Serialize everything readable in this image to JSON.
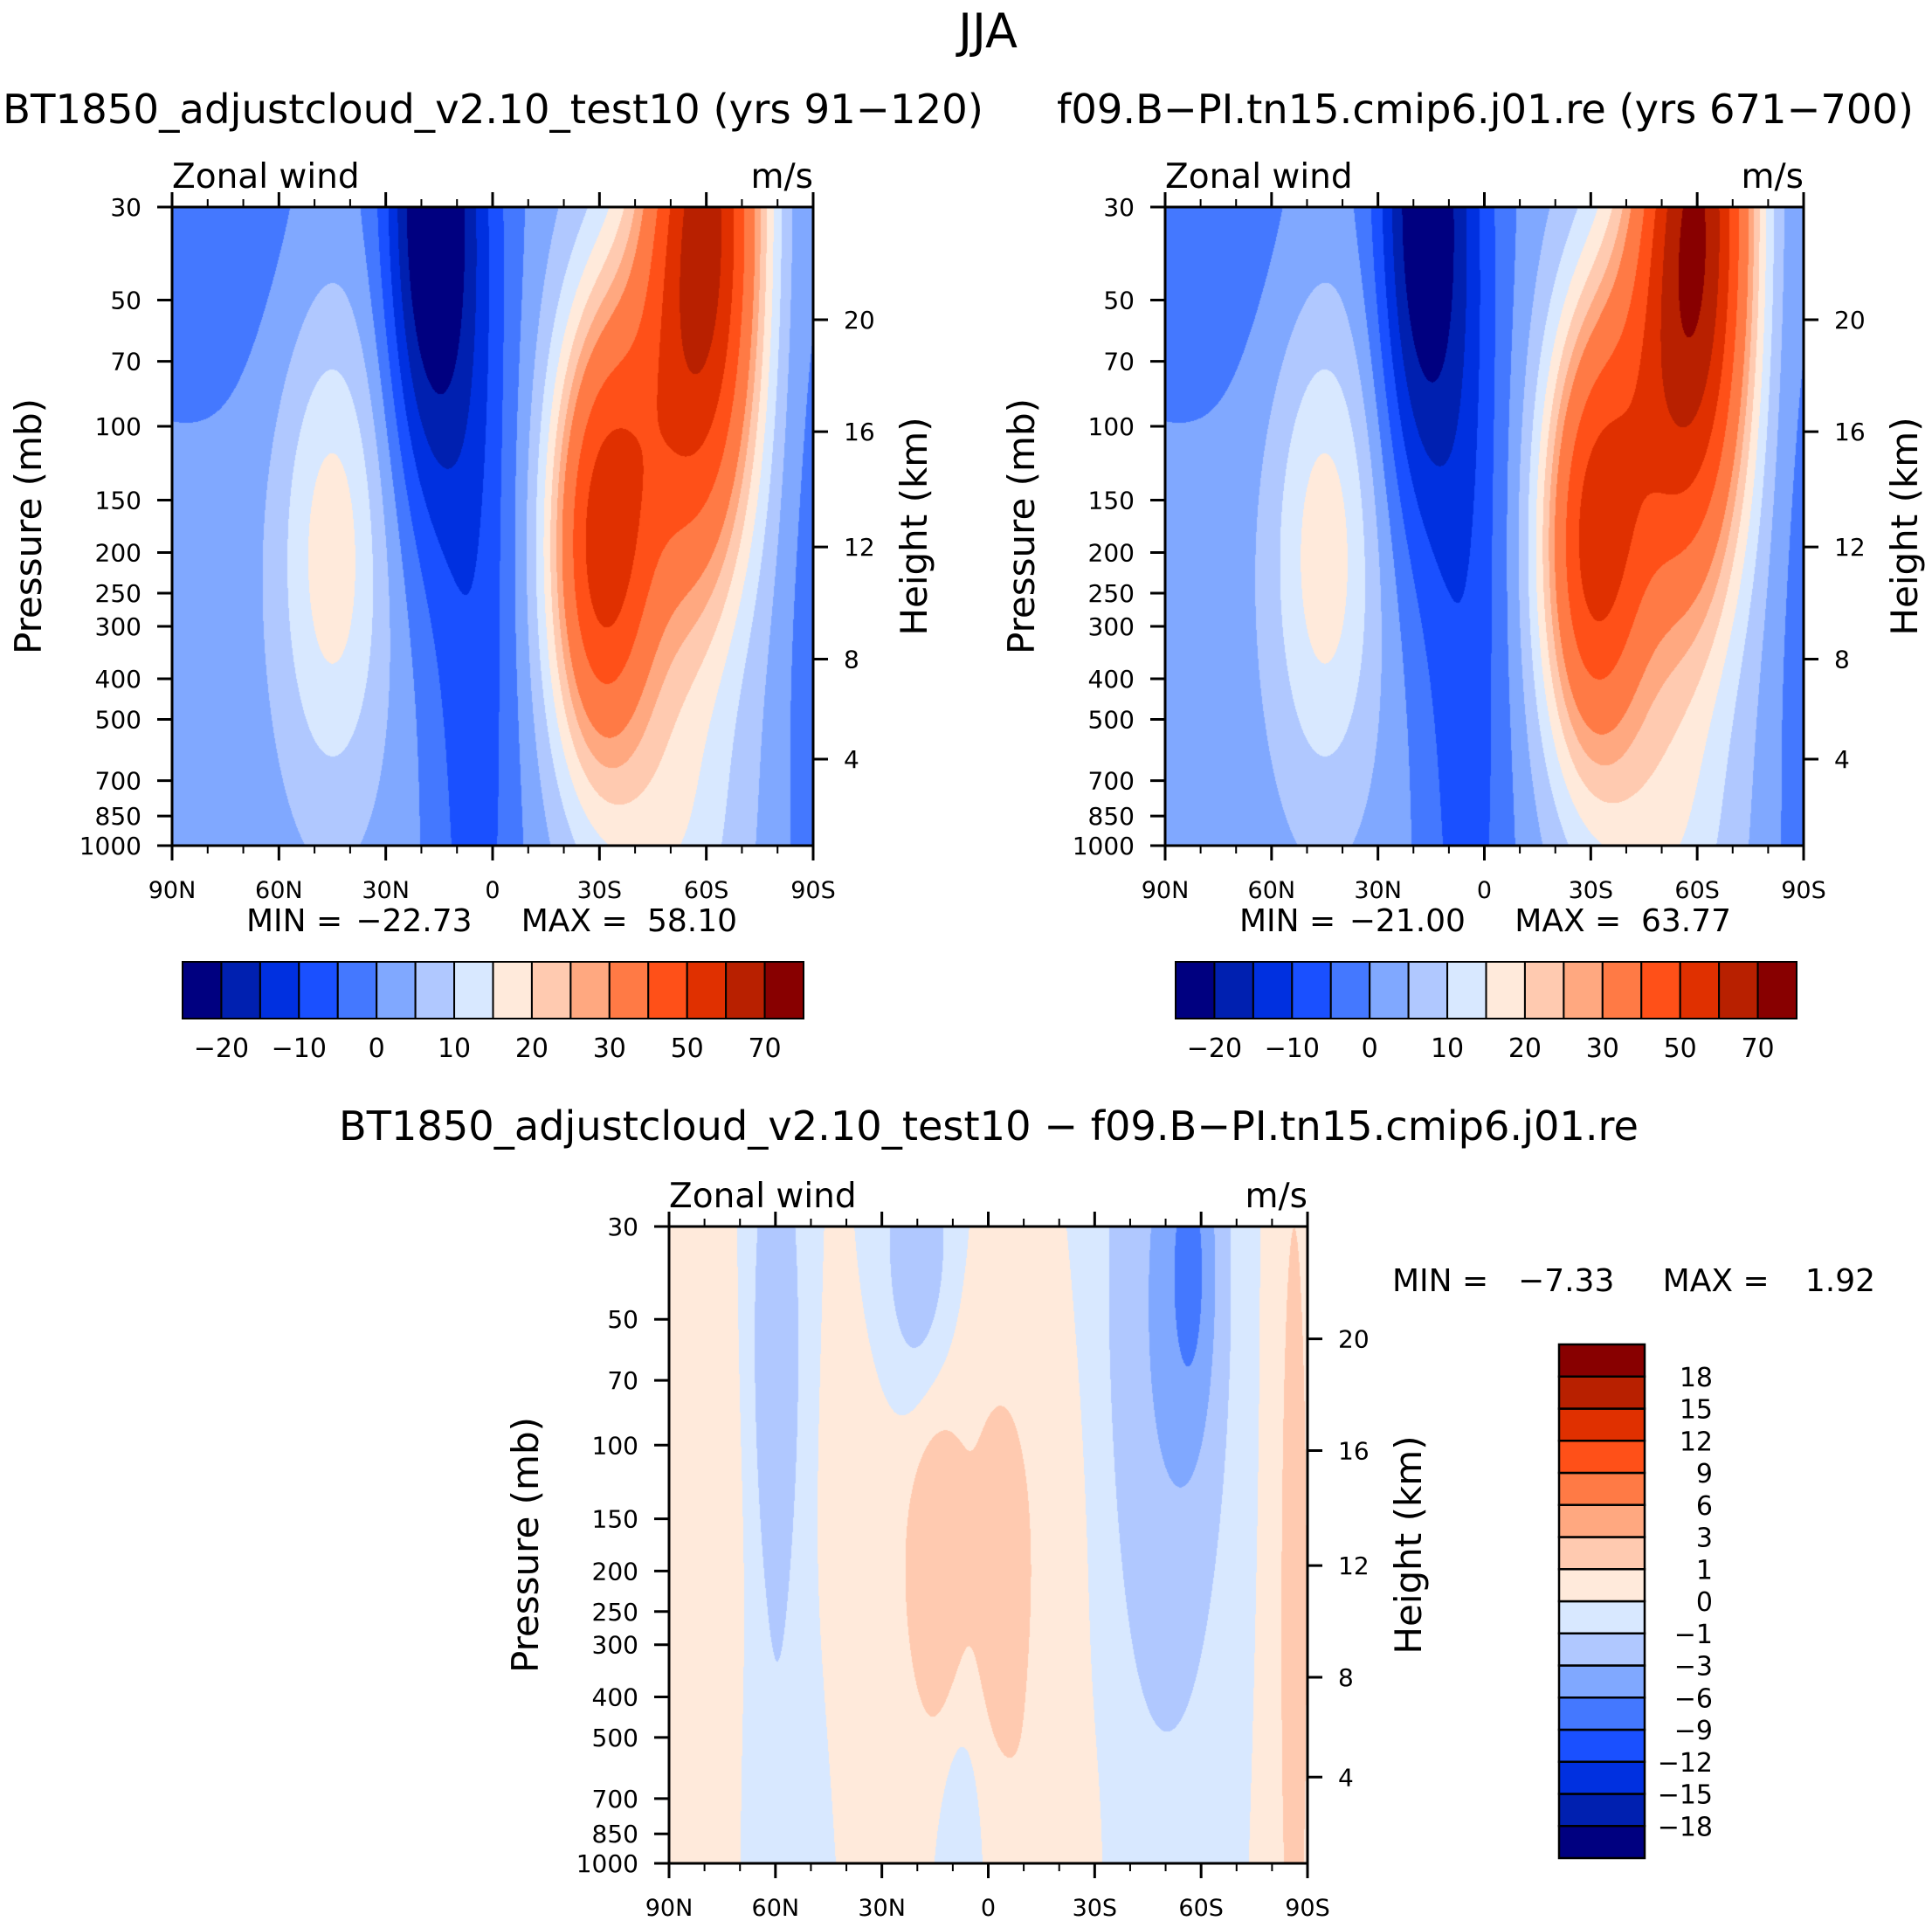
{
  "page_title": "JJA",
  "chart_data": [
    {
      "type": "heatmap",
      "subtype": "filled-contour",
      "title": "BT1850_adjustcloud_v2.10_test10 (yrs 91−120)",
      "left_string": "Zonal wind",
      "right_string": "m/s",
      "ylabel": "Pressure (mb)",
      "ylabel_right": "Height (km)",
      "x_ticks": [
        "90N",
        "60N",
        "30N",
        "0",
        "30S",
        "60S",
        "90S"
      ],
      "x_tick_values": [
        90,
        60,
        30,
        0,
        -30,
        -60,
        -90
      ],
      "xlim": [
        90,
        -90
      ],
      "y_ticks": [
        "30",
        "50",
        "70",
        "100",
        "150",
        "200",
        "250",
        "300",
        "400",
        "500",
        "700",
        "850",
        "1000"
      ],
      "y_tick_values": [
        30,
        50,
        70,
        100,
        150,
        200,
        250,
        300,
        400,
        500,
        700,
        850,
        1000
      ],
      "ylim_mb": [
        1000,
        30
      ],
      "yscale": "log",
      "height_ticks": [
        {
          "label": "20",
          "p": 55.7
        },
        {
          "label": "16",
          "p": 103
        },
        {
          "label": "12",
          "p": 194
        },
        {
          "label": "8",
          "p": 359
        },
        {
          "label": "4",
          "p": 622
        }
      ],
      "min_label": "MIN =",
      "min_value": "−22.73",
      "max_label": "MAX =",
      "max_value": "58.10",
      "levels": [
        -20,
        -15,
        -10,
        -5,
        0,
        5,
        10,
        15,
        20,
        25,
        30,
        40,
        50,
        60,
        70
      ],
      "colorbar_labels": [
        {
          "label": "−20",
          "boundary": 1
        },
        {
          "label": "−10",
          "boundary": 3
        },
        {
          "label": "0",
          "boundary": 5
        },
        {
          "label": "10",
          "boundary": 7
        },
        {
          "label": "20",
          "boundary": 9
        },
        {
          "label": "30",
          "boundary": 11
        },
        {
          "label": "50",
          "boundary": 13
        },
        {
          "label": "70",
          "boundary": 15
        }
      ],
      "field": {
        "base": 2,
        "features": [
          {
            "lat": 45,
            "p": 200,
            "amp": 16,
            "s_lat": 11,
            "s_lnp": 0.95
          },
          {
            "lat": 18,
            "p": 30,
            "amp": -27,
            "s_lat": 9,
            "s_lnp": 1.15
          },
          {
            "lat": 5,
            "p": 250,
            "amp": -10,
            "s_lat": 9,
            "s_lnp": 3.0
          },
          {
            "lat": -30,
            "p": 200,
            "amp": 45,
            "s_lat": 10,
            "s_lnp": 0.85
          },
          {
            "lat": -60,
            "p": 30,
            "amp": 58,
            "s_lat": 11,
            "s_lnp": 1.3
          },
          {
            "lat": -45,
            "p": 100,
            "amp": 22,
            "s_lat": 13,
            "s_lnp": 1.0
          },
          {
            "lat": 85,
            "p": 30,
            "amp": -6,
            "s_lat": 25,
            "s_lnp": 0.8
          },
          {
            "lat": -50,
            "p": 1000,
            "amp": 10,
            "s_lat": 14,
            "s_lnp": 0.7
          },
          {
            "lat": -88,
            "p": 300,
            "amp": -4,
            "s_lat": 6,
            "s_lnp": 3.0
          }
        ]
      }
    },
    {
      "type": "heatmap",
      "subtype": "filled-contour",
      "title": "f09.B−PI.tn15.cmip6.j01.re (yrs 671−700)",
      "left_string": "Zonal wind",
      "right_string": "m/s",
      "ylabel": "Pressure (mb)",
      "ylabel_right": "Height (km)",
      "x_ticks": [
        "90N",
        "60N",
        "30N",
        "0",
        "30S",
        "60S",
        "90S"
      ],
      "x_tick_values": [
        90,
        60,
        30,
        0,
        -30,
        -60,
        -90
      ],
      "xlim": [
        90,
        -90
      ],
      "y_ticks": [
        "30",
        "50",
        "70",
        "100",
        "150",
        "200",
        "250",
        "300",
        "400",
        "500",
        "700",
        "850",
        "1000"
      ],
      "y_tick_values": [
        30,
        50,
        70,
        100,
        150,
        200,
        250,
        300,
        400,
        500,
        700,
        850,
        1000
      ],
      "ylim_mb": [
        1000,
        30
      ],
      "yscale": "log",
      "height_ticks": [
        {
          "label": "20",
          "p": 55.7
        },
        {
          "label": "16",
          "p": 103
        },
        {
          "label": "12",
          "p": 194
        },
        {
          "label": "8",
          "p": 359
        },
        {
          "label": "4",
          "p": 622
        }
      ],
      "min_label": "MIN =",
      "min_value": "−21.00",
      "max_label": "MAX =",
      "max_value": "63.77",
      "levels": [
        -20,
        -15,
        -10,
        -5,
        0,
        5,
        10,
        15,
        20,
        25,
        30,
        40,
        50,
        60,
        70
      ],
      "colorbar_labels": [
        {
          "label": "−20",
          "boundary": 1
        },
        {
          "label": "−10",
          "boundary": 3
        },
        {
          "label": "0",
          "boundary": 5
        },
        {
          "label": "10",
          "boundary": 7
        },
        {
          "label": "20",
          "boundary": 9
        },
        {
          "label": "30",
          "boundary": 11
        },
        {
          "label": "50",
          "boundary": 13
        },
        {
          "label": "70",
          "boundary": 15
        }
      ],
      "field": {
        "base": 2,
        "features": [
          {
            "lat": 45,
            "p": 200,
            "amp": 16,
            "s_lat": 11,
            "s_lnp": 0.95
          },
          {
            "lat": 18,
            "p": 30,
            "amp": -25,
            "s_lat": 9,
            "s_lnp": 1.2
          },
          {
            "lat": 5,
            "p": 250,
            "amp": -10,
            "s_lat": 9,
            "s_lnp": 3.0
          },
          {
            "lat": -30,
            "p": 200,
            "amp": 43,
            "s_lat": 10,
            "s_lnp": 0.85
          },
          {
            "lat": -60,
            "p": 30,
            "amp": 64,
            "s_lat": 11,
            "s_lnp": 1.35
          },
          {
            "lat": -45,
            "p": 100,
            "amp": 24,
            "s_lat": 13,
            "s_lnp": 1.0
          },
          {
            "lat": 85,
            "p": 30,
            "amp": -6,
            "s_lat": 25,
            "s_lnp": 0.8
          },
          {
            "lat": -50,
            "p": 1000,
            "amp": 10,
            "s_lat": 14,
            "s_lnp": 0.7
          },
          {
            "lat": -88,
            "p": 300,
            "amp": -4,
            "s_lat": 6,
            "s_lnp": 3.0
          }
        ]
      }
    },
    {
      "type": "heatmap",
      "subtype": "filled-contour",
      "title": "BT1850_adjustcloud_v2.10_test10 − f09.B−PI.tn15.cmip6.j01.re",
      "left_string": "Zonal wind",
      "right_string": "m/s",
      "ylabel": "Pressure (mb)",
      "ylabel_right": "Height (km)",
      "x_ticks": [
        "90N",
        "60N",
        "30N",
        "0",
        "30S",
        "60S",
        "90S"
      ],
      "x_tick_values": [
        90,
        60,
        30,
        0,
        -30,
        -60,
        -90
      ],
      "xlim": [
        90,
        -90
      ],
      "y_ticks": [
        "30",
        "50",
        "70",
        "100",
        "150",
        "200",
        "250",
        "300",
        "400",
        "500",
        "700",
        "850",
        "1000"
      ],
      "y_tick_values": [
        30,
        50,
        70,
        100,
        150,
        200,
        250,
        300,
        400,
        500,
        700,
        850,
        1000
      ],
      "ylim_mb": [
        1000,
        30
      ],
      "yscale": "log",
      "height_ticks": [
        {
          "label": "20",
          "p": 55.7
        },
        {
          "label": "16",
          "p": 103
        },
        {
          "label": "12",
          "p": 194
        },
        {
          "label": "8",
          "p": 359
        },
        {
          "label": "4",
          "p": 622
        }
      ],
      "min_label": "MIN =",
      "min_value": "−7.33",
      "max_label": "MAX =",
      "max_value": "1.92",
      "levels": [
        -18,
        -15,
        -12,
        -9,
        -6,
        -3,
        -1,
        0,
        1,
        3,
        6,
        9,
        12,
        15,
        18
      ],
      "colorbar_labels": [
        {
          "label": "−18",
          "boundary": 1
        },
        {
          "label": "−15",
          "boundary": 2
        },
        {
          "label": "−12",
          "boundary": 3
        },
        {
          "label": "−9",
          "boundary": 4
        },
        {
          "label": "−6",
          "boundary": 5
        },
        {
          "label": "−3",
          "boundary": 6
        },
        {
          "label": "−1",
          "boundary": 7
        },
        {
          "label": "0",
          "boundary": 8
        },
        {
          "label": "1",
          "boundary": 9
        },
        {
          "label": "3",
          "boundary": 10
        },
        {
          "label": "6",
          "boundary": 11
        },
        {
          "label": "9",
          "boundary": 12
        },
        {
          "label": "12",
          "boundary": 13
        },
        {
          "label": "15",
          "boundary": 14
        },
        {
          "label": "18",
          "boundary": 15
        }
      ],
      "field": {
        "base": 0,
        "features": [
          {
            "lat": 85,
            "p": 250,
            "amp": 0.7,
            "s_lat": 14,
            "s_lnp": 1.6
          },
          {
            "lat": 60,
            "p": 60,
            "amp": -2.4,
            "s_lat": 5,
            "s_lnp": 1.0
          },
          {
            "lat": 60,
            "p": 650,
            "amp": -0.8,
            "s_lat": 7,
            "s_lnp": 0.9
          },
          {
            "lat": 15,
            "p": 200,
            "amp": 1.8,
            "s_lat": 5,
            "s_lnp": 0.55
          },
          {
            "lat": -4,
            "p": 220,
            "amp": 1.7,
            "s_lat": 4.5,
            "s_lnp": 0.55
          },
          {
            "lat": 5,
            "p": 150,
            "amp": 0.9,
            "s_lat": 22,
            "s_lnp": 1.0
          },
          {
            "lat": 20,
            "p": 35,
            "amp": -2.2,
            "s_lat": 7,
            "s_lnp": 0.6
          },
          {
            "lat": -50,
            "p": 50,
            "amp": -3.2,
            "s_lat": 11,
            "s_lnp": 1.5
          },
          {
            "lat": -57,
            "p": 38,
            "amp": -5,
            "s_lat": 4.5,
            "s_lnp": 0.6
          },
          {
            "lat": -86,
            "p": 250,
            "amp": 1.3,
            "s_lat": 5,
            "s_lnp": 3.0
          },
          {
            "lat": 8,
            "p": 850,
            "amp": -0.9,
            "s_lat": 4,
            "s_lnp": 0.5
          },
          {
            "lat": -15,
            "p": 850,
            "amp": 0.8,
            "s_lat": 8,
            "s_lnp": 0.5
          }
        ]
      }
    }
  ],
  "colors": [
    "#000080",
    "#0020b0",
    "#0030e0",
    "#1a50ff",
    "#4478ff",
    "#80a8ff",
    "#b0c8ff",
    "#d8e8ff",
    "#ffeadb",
    "#ffcab0",
    "#ffa880",
    "#ff7a45",
    "#ff5018",
    "#e03000",
    "#b82000",
    "#880000"
  ]
}
